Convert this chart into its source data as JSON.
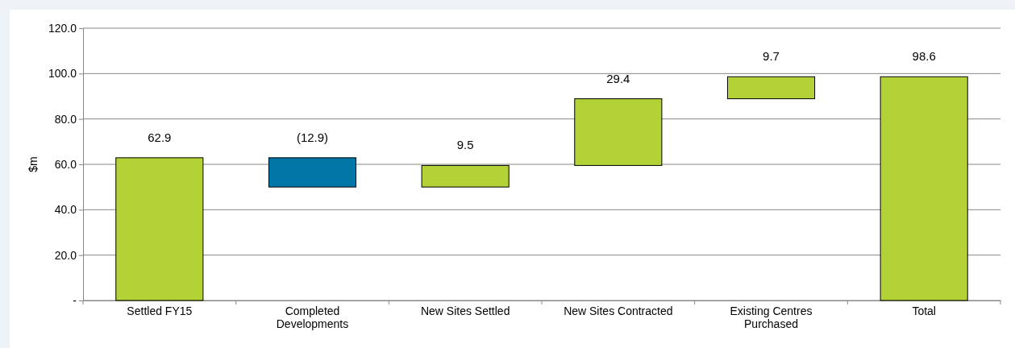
{
  "chart_data": {
    "type": "bar",
    "ylabel": "$m",
    "categories": [
      "Settled FY15",
      "Completed Developments",
      "New Sites Settled",
      "New Sites Contracted",
      "Existing Centres Purchased",
      "Total"
    ],
    "values": [
      62.9,
      -12.9,
      9.5,
      29.4,
      9.7,
      98.6
    ],
    "base": [
      0,
      62.9,
      50.0,
      59.5,
      88.9,
      0
    ],
    "colors": [
      "#b2d235",
      "#0077a6",
      "#b2d235",
      "#b2d235",
      "#b2d235",
      "#b2d235"
    ],
    "value_labels": [
      "62.9",
      "(12.9)",
      "9.5",
      "29.4",
      "9.7",
      "98.6"
    ],
    "ylim": [
      0,
      120
    ],
    "yticks": [
      {
        "value": 0,
        "label": "-"
      },
      {
        "value": 20,
        "label": "20.0"
      },
      {
        "value": 40,
        "label": "40.0"
      },
      {
        "value": 60,
        "label": "60.0"
      },
      {
        "value": 80,
        "label": "80.0"
      },
      {
        "value": 100,
        "label": "100.0"
      },
      {
        "value": 120,
        "label": "120.0"
      }
    ],
    "grid": "y"
  }
}
